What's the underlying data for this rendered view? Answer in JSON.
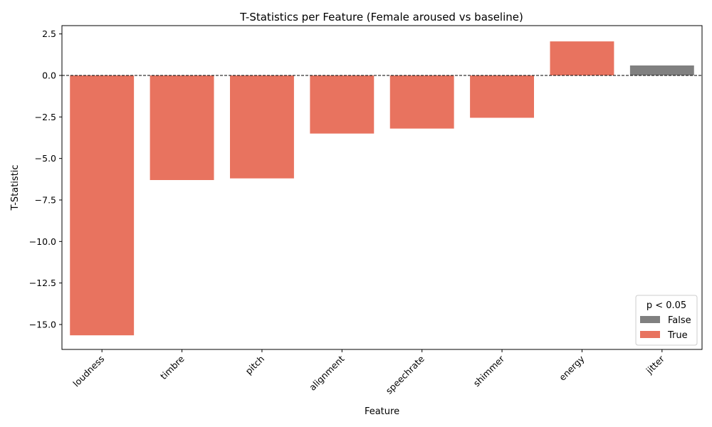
{
  "chart_data": {
    "type": "bar",
    "title": "T-Statistics per Feature (Female aroused vs baseline)",
    "xlabel": "Feature",
    "ylabel": "T-Statistic",
    "ylim": [
      -16.5,
      3.0
    ],
    "yticks": [
      2.5,
      0.0,
      -2.5,
      -5.0,
      -7.5,
      -10.0,
      -12.5,
      -15.0
    ],
    "ytick_labels": [
      "2.5",
      "0.0",
      "−2.5",
      "−5.0",
      "−7.5",
      "−10.0",
      "−12.5",
      "−15.0"
    ],
    "categories": [
      "loudness",
      "timbre",
      "pitch",
      "alignment",
      "speechrate",
      "shimmer",
      "energy",
      "jitter"
    ],
    "values": [
      -15.65,
      -6.3,
      -6.2,
      -3.5,
      -3.2,
      -2.55,
      2.05,
      0.6
    ],
    "significant": [
      true,
      true,
      true,
      true,
      true,
      true,
      true,
      false
    ],
    "reference_line": 0,
    "legend": {
      "title": "p < 0.05",
      "position": "bottom-right",
      "entries": [
        {
          "label": "False",
          "color": "#808080"
        },
        {
          "label": "True",
          "color": "#e8735f"
        }
      ]
    },
    "colors": {
      "false": "#808080",
      "true": "#e8735f"
    }
  }
}
